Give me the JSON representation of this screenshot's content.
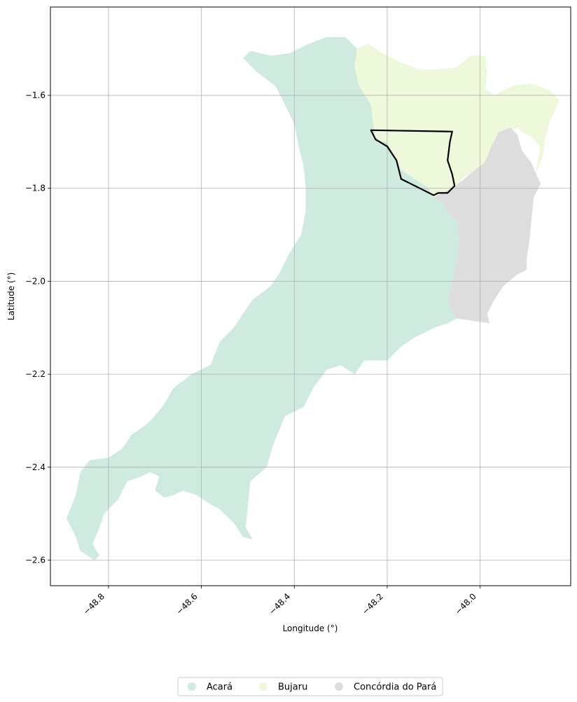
{
  "chart_data": {
    "type": "map",
    "title": "",
    "xlabel": "Longitude (°)",
    "ylabel": "Latitude (°)",
    "xlim": [
      -48.925,
      -47.805
    ],
    "ylim": [
      -2.655,
      -1.41
    ],
    "grid": true,
    "x_ticks": [
      {
        "value": -48.8,
        "label": "−48.8"
      },
      {
        "value": -48.6,
        "label": "−48.6"
      },
      {
        "value": -48.4,
        "label": "−48.4"
      },
      {
        "value": -48.2,
        "label": "−48.2"
      },
      {
        "value": -48.0,
        "label": "−48.0"
      }
    ],
    "y_ticks": [
      {
        "value": -1.6,
        "label": "−1.6"
      },
      {
        "value": -1.8,
        "label": "−1.8"
      },
      {
        "value": -2.0,
        "label": "−2.0"
      },
      {
        "value": -2.2,
        "label": "−2.2"
      },
      {
        "value": -2.4,
        "label": "−2.4"
      },
      {
        "value": -2.6,
        "label": "−2.6"
      }
    ],
    "regions": [
      {
        "name": "Acará",
        "color": "#cfeade",
        "coords": [
          [
            -48.89,
            -2.51
          ],
          [
            -48.87,
            -2.46
          ],
          [
            -48.86,
            -2.41
          ],
          [
            -48.84,
            -2.385
          ],
          [
            -48.8,
            -2.38
          ],
          [
            -48.77,
            -2.36
          ],
          [
            -48.75,
            -2.33
          ],
          [
            -48.72,
            -2.31
          ],
          [
            -48.7,
            -2.29
          ],
          [
            -48.68,
            -2.265
          ],
          [
            -48.66,
            -2.23
          ],
          [
            -48.62,
            -2.2
          ],
          [
            -48.58,
            -2.18
          ],
          [
            -48.56,
            -2.13
          ],
          [
            -48.53,
            -2.1
          ],
          [
            -48.51,
            -2.07
          ],
          [
            -48.49,
            -2.04
          ],
          [
            -48.45,
            -2.01
          ],
          [
            -48.43,
            -1.98
          ],
          [
            -48.41,
            -1.94
          ],
          [
            -48.385,
            -1.9
          ],
          [
            -48.375,
            -1.85
          ],
          [
            -48.375,
            -1.8
          ],
          [
            -48.38,
            -1.75
          ],
          [
            -48.39,
            -1.71
          ],
          [
            -48.4,
            -1.66
          ],
          [
            -48.42,
            -1.62
          ],
          [
            -48.44,
            -1.58
          ],
          [
            -48.48,
            -1.55
          ],
          [
            -48.51,
            -1.52
          ],
          [
            -48.495,
            -1.505
          ],
          [
            -48.45,
            -1.515
          ],
          [
            -48.41,
            -1.51
          ],
          [
            -48.37,
            -1.49
          ],
          [
            -48.33,
            -1.475
          ],
          [
            -48.29,
            -1.475
          ],
          [
            -48.265,
            -1.5
          ],
          [
            -48.27,
            -1.54
          ],
          [
            -48.26,
            -1.58
          ],
          [
            -48.235,
            -1.62
          ],
          [
            -48.23,
            -1.66
          ],
          [
            -48.225,
            -1.695
          ],
          [
            -48.2,
            -1.7
          ],
          [
            -48.18,
            -1.74
          ],
          [
            -48.17,
            -1.76
          ],
          [
            -48.14,
            -1.78
          ],
          [
            -48.11,
            -1.8
          ],
          [
            -48.1,
            -1.82
          ],
          [
            -48.08,
            -1.83
          ],
          [
            -48.07,
            -1.85
          ],
          [
            -48.05,
            -1.87
          ],
          [
            -48.045,
            -1.91
          ],
          [
            -48.05,
            -1.96
          ],
          [
            -48.06,
            -2.01
          ],
          [
            -48.07,
            -2.04
          ],
          [
            -48.05,
            -2.08
          ],
          [
            -48.07,
            -2.09
          ],
          [
            -48.1,
            -2.1
          ],
          [
            -48.14,
            -2.12
          ],
          [
            -48.17,
            -2.14
          ],
          [
            -48.2,
            -2.17
          ],
          [
            -48.25,
            -2.17
          ],
          [
            -48.27,
            -2.2
          ],
          [
            -48.3,
            -2.18
          ],
          [
            -48.33,
            -2.19
          ],
          [
            -48.36,
            -2.23
          ],
          [
            -48.38,
            -2.27
          ],
          [
            -48.42,
            -2.29
          ],
          [
            -48.445,
            -2.35
          ],
          [
            -48.46,
            -2.4
          ],
          [
            -48.495,
            -2.43
          ],
          [
            -48.5,
            -2.48
          ],
          [
            -48.505,
            -2.53
          ],
          [
            -48.49,
            -2.555
          ],
          [
            -48.51,
            -2.55
          ],
          [
            -48.53,
            -2.52
          ],
          [
            -48.56,
            -2.49
          ],
          [
            -48.58,
            -2.48
          ],
          [
            -48.61,
            -2.46
          ],
          [
            -48.64,
            -2.45
          ],
          [
            -48.66,
            -2.46
          ],
          [
            -48.68,
            -2.465
          ],
          [
            -48.7,
            -2.45
          ],
          [
            -48.69,
            -2.42
          ],
          [
            -48.71,
            -2.41
          ],
          [
            -48.73,
            -2.42
          ],
          [
            -48.76,
            -2.43
          ],
          [
            -48.78,
            -2.47
          ],
          [
            -48.81,
            -2.5
          ],
          [
            -48.82,
            -2.53
          ],
          [
            -48.835,
            -2.565
          ],
          [
            -48.82,
            -2.59
          ],
          [
            -48.83,
            -2.6
          ],
          [
            -48.86,
            -2.58
          ],
          [
            -48.87,
            -2.55
          ],
          [
            -48.89,
            -2.51
          ]
        ]
      },
      {
        "name": "Bujaru",
        "color": "#eef8da",
        "coords": [
          [
            -48.265,
            -1.5
          ],
          [
            -48.27,
            -1.54
          ],
          [
            -48.26,
            -1.58
          ],
          [
            -48.235,
            -1.62
          ],
          [
            -48.23,
            -1.66
          ],
          [
            -48.225,
            -1.695
          ],
          [
            -48.2,
            -1.7
          ],
          [
            -48.18,
            -1.74
          ],
          [
            -48.17,
            -1.76
          ],
          [
            -48.14,
            -1.78
          ],
          [
            -48.11,
            -1.8
          ],
          [
            -48.1,
            -1.82
          ],
          [
            -48.08,
            -1.83
          ],
          [
            -48.07,
            -1.85
          ],
          [
            -48.06,
            -1.84
          ],
          [
            -48.05,
            -1.8
          ],
          [
            -48.04,
            -1.78
          ],
          [
            -48.01,
            -1.76
          ],
          [
            -47.99,
            -1.745
          ],
          [
            -47.98,
            -1.72
          ],
          [
            -47.96,
            -1.68
          ],
          [
            -47.92,
            -1.67
          ],
          [
            -47.89,
            -1.69
          ],
          [
            -47.87,
            -1.71
          ],
          [
            -47.875,
            -1.74
          ],
          [
            -47.88,
            -1.77
          ],
          [
            -47.865,
            -1.73
          ],
          [
            -47.86,
            -1.69
          ],
          [
            -47.85,
            -1.655
          ],
          [
            -47.84,
            -1.635
          ],
          [
            -47.83,
            -1.61
          ],
          [
            -47.85,
            -1.59
          ],
          [
            -47.89,
            -1.575
          ],
          [
            -47.93,
            -1.58
          ],
          [
            -47.97,
            -1.6
          ],
          [
            -47.99,
            -1.585
          ],
          [
            -47.985,
            -1.55
          ],
          [
            -47.99,
            -1.515
          ],
          [
            -48.02,
            -1.515
          ],
          [
            -48.05,
            -1.54
          ],
          [
            -48.09,
            -1.545
          ],
          [
            -48.13,
            -1.545
          ],
          [
            -48.17,
            -1.53
          ],
          [
            -48.21,
            -1.51
          ],
          [
            -48.24,
            -1.49
          ],
          [
            -48.265,
            -1.5
          ]
        ]
      },
      {
        "name": "Concórdia do Pará",
        "color": "#dddddd",
        "coords": [
          [
            -48.07,
            -1.85
          ],
          [
            -48.08,
            -1.83
          ],
          [
            -48.1,
            -1.82
          ],
          [
            -48.06,
            -1.8
          ],
          [
            -48.04,
            -1.785
          ],
          [
            -48.01,
            -1.76
          ],
          [
            -47.99,
            -1.745
          ],
          [
            -47.975,
            -1.71
          ],
          [
            -47.96,
            -1.68
          ],
          [
            -47.935,
            -1.67
          ],
          [
            -47.92,
            -1.685
          ],
          [
            -47.91,
            -1.72
          ],
          [
            -47.89,
            -1.745
          ],
          [
            -47.875,
            -1.78
          ],
          [
            -47.87,
            -1.79
          ],
          [
            -47.885,
            -1.82
          ],
          [
            -47.89,
            -1.87
          ],
          [
            -47.895,
            -1.92
          ],
          [
            -47.9,
            -1.95
          ],
          [
            -47.9,
            -1.975
          ],
          [
            -47.92,
            -1.985
          ],
          [
            -47.95,
            -2.01
          ],
          [
            -47.97,
            -2.04
          ],
          [
            -47.985,
            -2.07
          ],
          [
            -47.98,
            -2.09
          ],
          [
            -48.05,
            -2.08
          ],
          [
            -48.07,
            -2.04
          ],
          [
            -48.06,
            -2.01
          ],
          [
            -48.05,
            -1.96
          ],
          [
            -48.045,
            -1.91
          ],
          [
            -48.05,
            -1.87
          ],
          [
            -48.07,
            -1.85
          ]
        ]
      }
    ],
    "highlight": {
      "outline_color": "#000000",
      "coords": [
        [
          -48.235,
          -1.675
        ],
        [
          -48.06,
          -1.678
        ],
        [
          -48.065,
          -1.7
        ],
        [
          -48.07,
          -1.74
        ],
        [
          -48.06,
          -1.77
        ],
        [
          -48.055,
          -1.795
        ],
        [
          -48.07,
          -1.81
        ],
        [
          -48.09,
          -1.81
        ],
        [
          -48.1,
          -1.815
        ],
        [
          -48.13,
          -1.8
        ],
        [
          -48.17,
          -1.78
        ],
        [
          -48.18,
          -1.74
        ],
        [
          -48.2,
          -1.71
        ],
        [
          -48.225,
          -1.695
        ],
        [
          -48.235,
          -1.675
        ]
      ]
    },
    "legend": {
      "placement": "bottom-center",
      "entries": [
        {
          "label": "Acará",
          "color": "#cfeade"
        },
        {
          "label": "Bujaru",
          "color": "#eef8da"
        },
        {
          "label": "Concórdia do Pará",
          "color": "#dddddd"
        }
      ]
    }
  }
}
